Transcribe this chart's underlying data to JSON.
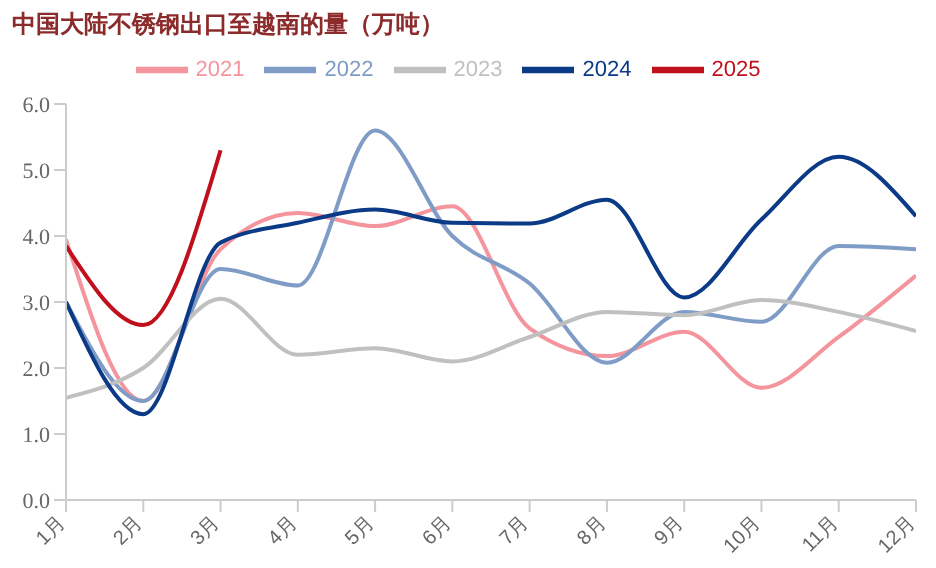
{
  "chart_data": {
    "type": "line",
    "title": "中国大陆不锈钢出口至越南的量（万吨）",
    "categories": [
      "1月",
      "2月",
      "3月",
      "4月",
      "5月",
      "6月",
      "7月",
      "8月",
      "9月",
      "10月",
      "11月",
      "12月"
    ],
    "series": [
      {
        "name": "2021",
        "color": "#f4949c",
        "values": [
          3.95,
          1.5,
          3.8,
          4.35,
          4.15,
          4.45,
          2.6,
          2.18,
          2.55,
          1.7,
          2.47,
          3.4
        ]
      },
      {
        "name": "2022",
        "color": "#7f9cc6",
        "values": [
          3.0,
          1.5,
          3.5,
          3.25,
          5.6,
          4.0,
          3.28,
          2.08,
          2.85,
          2.7,
          3.85,
          3.8
        ]
      },
      {
        "name": "2023",
        "color": "#c0c0c0",
        "values": [
          1.55,
          2.0,
          3.05,
          2.2,
          2.3,
          2.1,
          2.47,
          2.85,
          2.8,
          3.03,
          2.85,
          2.56
        ]
      },
      {
        "name": "2024",
        "color": "#0b3a86",
        "values": [
          3.0,
          1.3,
          3.9,
          4.2,
          4.4,
          4.2,
          4.19,
          4.55,
          3.07,
          4.25,
          5.2,
          4.3
        ]
      },
      {
        "name": "2025",
        "color": "#c0101c",
        "values": [
          3.85,
          2.65,
          5.3,
          null,
          null,
          null,
          null,
          null,
          null,
          null,
          null,
          null
        ]
      }
    ],
    "ylim": [
      0,
      6
    ],
    "yticks": [
      {
        "value": 0,
        "label": "0.0"
      },
      {
        "value": 1,
        "label": "1.0"
      },
      {
        "value": 2,
        "label": "2.0"
      },
      {
        "value": 3,
        "label": "3.0"
      },
      {
        "value": 4,
        "label": "4.0"
      },
      {
        "value": 5,
        "label": "5.0"
      },
      {
        "value": 6,
        "label": "6.0"
      }
    ],
    "grid": false,
    "legend": "top",
    "marker": "none",
    "line_style": "solid"
  }
}
